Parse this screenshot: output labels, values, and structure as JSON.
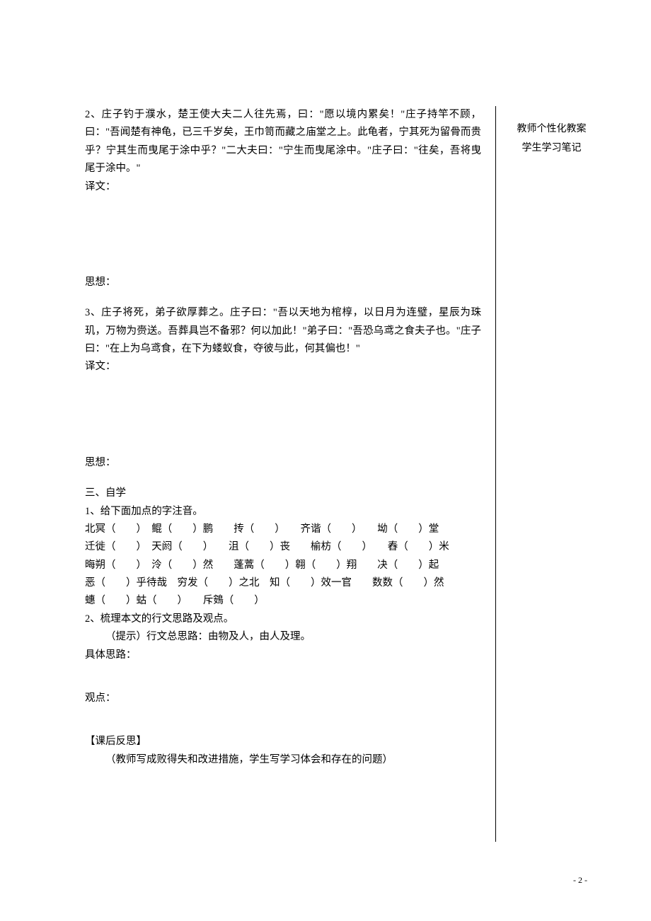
{
  "main": {
    "p2": "2、庄子钓于濮水，楚王使大夫二人往先焉，曰：\"愿以境内累矣！\"庄子持竿不顾，曰：\"吾闻楚有神龟，已三千岁矣，王巾笥而藏之庙堂之上。此龟者，宁其死为留骨而贵乎？宁其生而曳尾于涂中乎？\"二大夫曰：\"宁生而曳尾涂中。\"庄子曰：\"往矣，吾将曳尾于涂中。\"",
    "translation_label": "译文：",
    "thought_label": "思想：",
    "p3": "3、庄子将死，弟子欲厚葬之。庄子曰：\"吾以天地为棺椁，以日月为连璧，星辰为珠玑，万物为赍送。吾葬具岂不备邪？何以加此！\"弟子曰：\"吾恐乌鸢之食夫子也。\"庄子曰：\"在上为乌鸢食，在下为蝼蚁食，夺彼与此，何其偏也！\"",
    "section3": "三、自学",
    "q1": "1、给下面加点的字注音。",
    "line1": "北冥（　　）　鲲（　　）鹏　　抟（　　）　　齐谐（　　）　　坳（　　）堂",
    "line2": "迁徙（　　）　天阏（　　）　　沮（　　）丧　　榆枋（　　）　　舂（　　）米",
    "line3": "晦朔（　　）　泠（　　）然　　蓬蒿（　　）翱（　　）翔　　决（　　）起",
    "line4": "恶（　　）乎待哉　穷发（　　）之北　知（　　）效一官　　数数（　　）然",
    "line5": "蟪（　　）蛄（　　）　　斥鴳（　　）",
    "q2": "2、梳理本文的行文思路及观点。",
    "hint": "（提示）行文总思路：由物及人，由人及理。",
    "concrete": "具体思路：",
    "viewpoint": "观点：",
    "reflection_title": "【课后反思】",
    "reflection_body": "（教师写成败得失和改进措施，学生写学习体会和存在的问题）"
  },
  "side": {
    "line1": "教师个性化教案",
    "line2": "学生学习笔记"
  },
  "pagenum": "- 2 -",
  "colors": {
    "text": "#000000",
    "bg": "#ffffff",
    "rule": "#000000"
  },
  "typography": {
    "body_fontsize": 14.5,
    "side_fontsize": 14,
    "line_height": 1.75,
    "font_family": "SimSun"
  }
}
